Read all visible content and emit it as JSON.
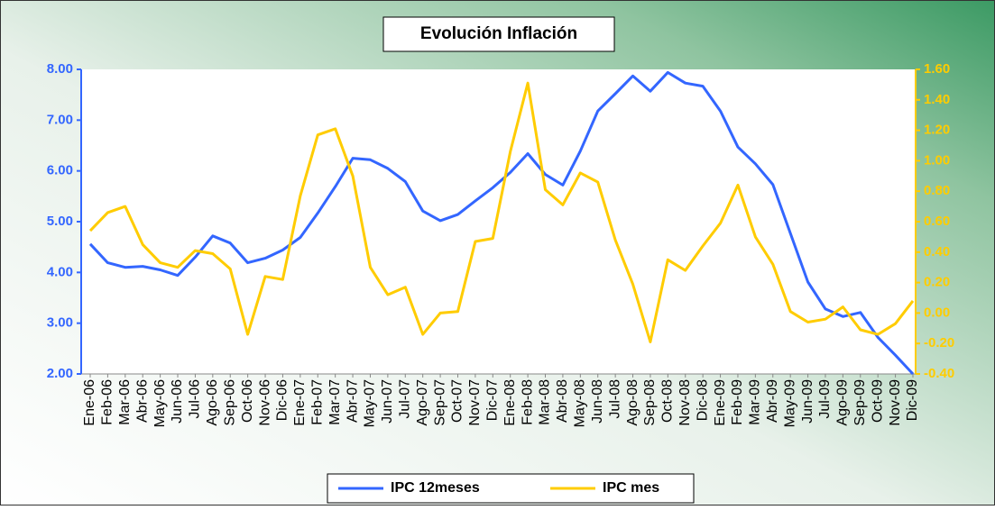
{
  "chart_data": {
    "type": "line",
    "title": "Evolución Inflación",
    "categories": [
      "Ene-06",
      "Feb-06",
      "Mar-06",
      "Abr-06",
      "May-06",
      "Jun-06",
      "Jul-06",
      "Ago-06",
      "Sep-06",
      "Oct-06",
      "Nov-06",
      "Dic-06",
      "Ene-07",
      "Feb-07",
      "Mar-07",
      "Abr-07",
      "May-07",
      "Jun-07",
      "Jul-07",
      "Ago-07",
      "Sep-07",
      "Oct-07",
      "Nov-07",
      "Dic-07",
      "Ene-08",
      "Feb-08",
      "Mar-08",
      "Abr-08",
      "May-08",
      "Jun-08",
      "Jul-08",
      "Ago-08",
      "Sep-08",
      "Oct-08",
      "Nov-08",
      "Dic-08",
      "Ene-09",
      "Feb-09",
      "Mar-09",
      "Abr-09",
      "May-09",
      "Jun-09",
      "Jul-09",
      "Ago-09",
      "Sep-09",
      "Oct-09",
      "Nov-09",
      "Dic-09"
    ],
    "series": [
      {
        "name": "IPC 12meses",
        "color": "#3366ff",
        "values": [
          4.56,
          4.19,
          4.1,
          4.12,
          4.05,
          3.94,
          4.3,
          4.72,
          4.58,
          4.19,
          4.28,
          4.44,
          4.69,
          5.17,
          5.69,
          6.25,
          6.22,
          6.05,
          5.79,
          5.21,
          5.02,
          5.14,
          5.41,
          5.67,
          5.97,
          6.34,
          5.93,
          5.72,
          6.39,
          7.18,
          7.52,
          7.87,
          7.57,
          7.94,
          7.73,
          7.67,
          7.18,
          6.47,
          6.14,
          5.73,
          4.77,
          3.81,
          3.28,
          3.13,
          3.21,
          2.72,
          2.37,
          2.0
        ]
      },
      {
        "name": "IPC mes",
        "color": "#ffcc00",
        "axis": "y2",
        "values": [
          0.54,
          0.66,
          0.7,
          0.45,
          0.33,
          0.3,
          0.41,
          0.39,
          0.29,
          -0.14,
          0.24,
          0.22,
          0.77,
          1.17,
          1.21,
          0.9,
          0.3,
          0.12,
          0.17,
          -0.14,
          0.0,
          0.01,
          0.47,
          0.49,
          1.06,
          1.51,
          0.81,
          0.71,
          0.92,
          0.86,
          0.48,
          0.19,
          -0.19,
          0.35,
          0.28,
          0.44,
          0.59,
          0.84,
          0.5,
          0.32,
          0.01,
          -0.06,
          -0.04,
          0.04,
          -0.11,
          -0.14,
          -0.07,
          0.08
        ]
      }
    ],
    "ylim": [
      2,
      8
    ],
    "yticks": [
      {
        "value": 2,
        "label": "2.00"
      },
      {
        "value": 3,
        "label": "3.00"
      },
      {
        "value": 4,
        "label": "4.00"
      },
      {
        "value": 5,
        "label": "5.00"
      },
      {
        "value": 6,
        "label": "6.00"
      },
      {
        "value": 7,
        "label": "7.00"
      },
      {
        "value": 8,
        "label": "8.00"
      }
    ],
    "y2lim": [
      -0.4,
      1.6
    ],
    "y2ticks": [
      {
        "value": -0.4,
        "label": "-0.40"
      },
      {
        "value": -0.2,
        "label": "-0.20"
      },
      {
        "value": 0,
        "label": "0.00"
      },
      {
        "value": 0.2,
        "label": "0.20"
      },
      {
        "value": 0.4,
        "label": "0.40"
      },
      {
        "value": 0.6,
        "label": "0.60"
      },
      {
        "value": 0.8,
        "label": "0.80"
      },
      {
        "value": 1.0,
        "label": "1.00"
      },
      {
        "value": 1.2,
        "label": "1.20"
      },
      {
        "value": 1.4,
        "label": "1.40"
      },
      {
        "value": 1.6,
        "label": "1.60"
      }
    ],
    "legend": "bottom"
  }
}
